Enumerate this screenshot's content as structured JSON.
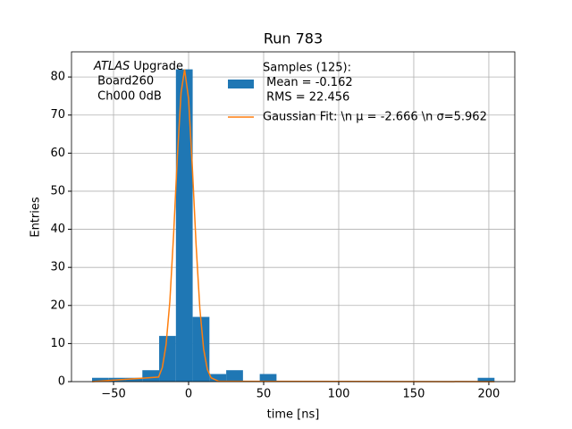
{
  "chart_data": {
    "type": "histogram",
    "title": "Run 783",
    "xlabel": "time [ns]",
    "ylabel": "Entries",
    "annotation": [
      [
        "ATLAS",
        " Upgrade"
      ],
      " Board260",
      " Ch000 0dB"
    ],
    "bins": [
      -64.3,
      -53.13,
      -41.96,
      -30.79,
      -19.62,
      -8.45,
      2.72,
      13.89,
      25.06,
      36.23,
      47.4,
      58.57,
      69.74,
      80.91,
      92.08,
      103.25,
      114.42,
      125.59,
      136.76,
      147.93,
      159.1,
      170.27,
      181.44,
      192.61,
      203.78
    ],
    "series": [
      {
        "name": [
          "Samples (125):",
          " Mean = -0.162",
          " RMS = 22.456"
        ],
        "color": "#1f77b4",
        "values": [
          1,
          1,
          1,
          3,
          12,
          82,
          17,
          2,
          3,
          0,
          2,
          0,
          0,
          0,
          0,
          0,
          0,
          0,
          0,
          0,
          0,
          0,
          0,
          1
        ]
      }
    ],
    "fit": {
      "name": "Gaussian Fit: \\n μ = -2.666 \\n σ=5.962",
      "color": "#ff7f0e",
      "x": [
        -64.3,
        -20,
        -17.5,
        -15,
        -12.5,
        -10,
        -7.5,
        -5,
        -2.666,
        0,
        2.5,
        5,
        7.5,
        10,
        12.5,
        15,
        20,
        203.78
      ],
      "values": [
        0,
        1.2,
        3.7,
        9.7,
        21.0,
        38.5,
        59.0,
        75.9,
        82,
        74.2,
        56.3,
        35.9,
        19.2,
        8.6,
        3.2,
        1.0,
        0.1,
        0
      ]
    },
    "xlim": [
      -78,
      217.3
    ],
    "ylim": [
      0,
      86.6
    ],
    "xticks": [
      {
        "value": -50,
        "label": "−50"
      },
      0,
      50,
      100,
      150,
      200
    ],
    "yticks": [
      0,
      10,
      20,
      30,
      40,
      50,
      60,
      70,
      80
    ],
    "grid": true
  }
}
